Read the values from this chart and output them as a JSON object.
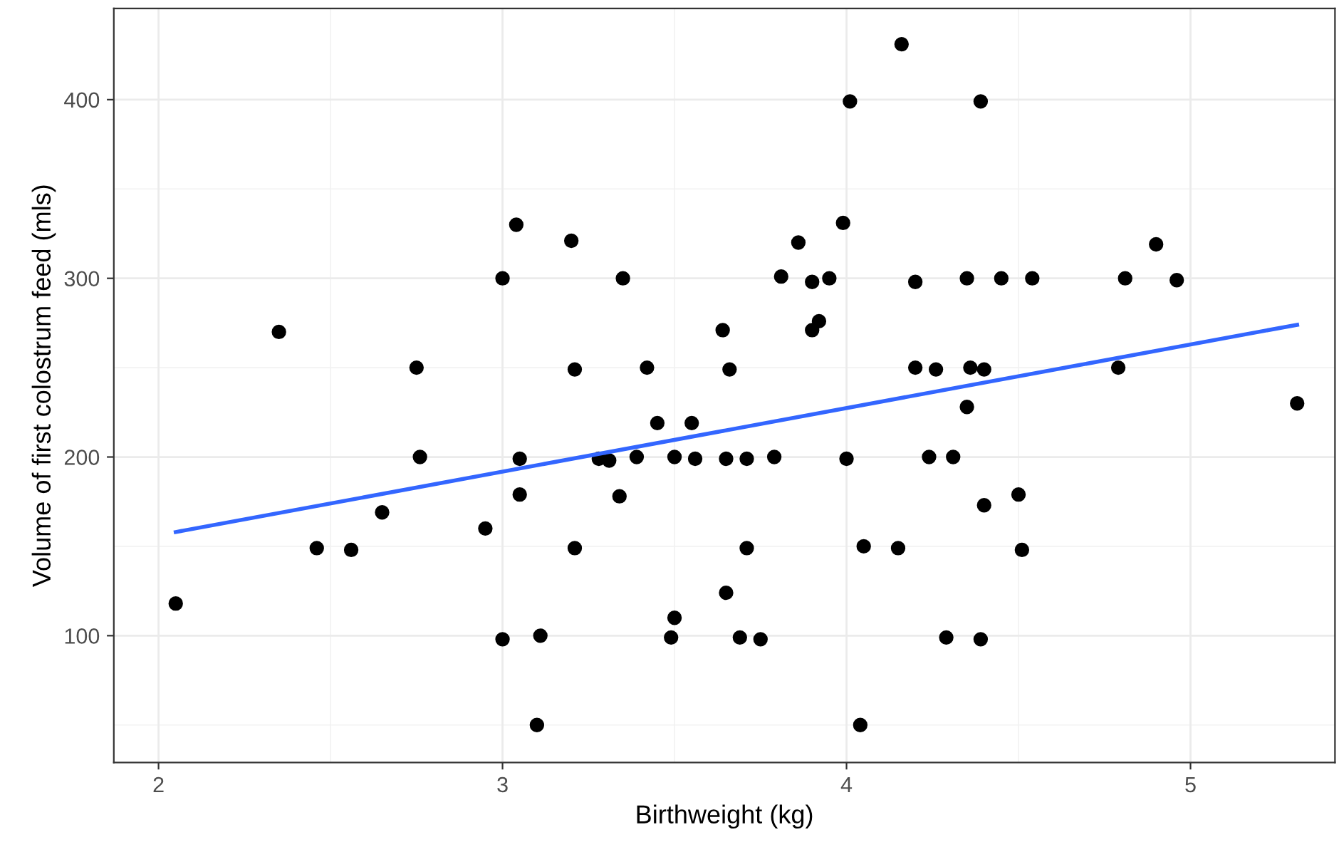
{
  "chart_data": {
    "type": "scatter",
    "xlabel": "Birthweight (kg)",
    "ylabel": "Volume of first colostrum feed (mls)",
    "xlim": [
      1.87,
      5.42
    ],
    "ylim": [
      29,
      451
    ],
    "xticks": [
      2,
      3,
      4,
      5
    ],
    "yticks": [
      100,
      200,
      300,
      400
    ],
    "grid": true,
    "series": [
      {
        "color": "#000000",
        "marker": "circle",
        "x": [
          2.05,
          2.35,
          2.46,
          2.56,
          2.65,
          2.75,
          2.76,
          2.95,
          3.0,
          3.0,
          3.04,
          3.05,
          3.05,
          3.1,
          3.11,
          3.2,
          3.21,
          3.21,
          3.28,
          3.31,
          3.34,
          3.35,
          3.39,
          3.42,
          3.45,
          3.49,
          3.5,
          3.5,
          3.55,
          3.56,
          3.64,
          3.65,
          3.65,
          3.66,
          3.69,
          3.71,
          3.71,
          3.75,
          3.79,
          3.81,
          3.86,
          3.9,
          3.9,
          3.92,
          3.95,
          3.99,
          4.0,
          4.01,
          4.04,
          4.05,
          4.15,
          4.16,
          4.2,
          4.2,
          4.24,
          4.26,
          4.29,
          4.31,
          4.35,
          4.35,
          4.36,
          4.39,
          4.39,
          4.4,
          4.4,
          4.45,
          4.5,
          4.51,
          4.54,
          4.79,
          4.81,
          4.9,
          4.96,
          5.31
        ],
        "values": [
          118,
          270,
          149,
          148,
          169,
          250,
          200,
          160,
          300,
          98,
          330,
          199,
          179,
          50,
          100,
          321,
          149,
          249,
          199,
          198,
          178,
          300,
          200,
          250,
          219,
          99,
          110,
          200,
          219,
          199,
          271,
          199,
          124,
          249,
          99,
          199,
          149,
          98,
          200,
          301,
          320,
          298,
          271,
          276,
          300,
          331,
          199,
          399,
          50,
          150,
          149,
          431,
          298,
          250,
          200,
          249,
          99,
          200,
          300,
          228,
          250,
          399,
          98,
          249,
          173,
          300,
          179,
          148,
          300,
          250,
          300,
          319,
          299,
          230
        ]
      },
      {
        "type": "line",
        "color": "#3366ff",
        "marker": "none",
        "line_style": "solid",
        "x": [
          2.05,
          5.31
        ],
        "values": [
          158,
          274
        ]
      }
    ]
  }
}
